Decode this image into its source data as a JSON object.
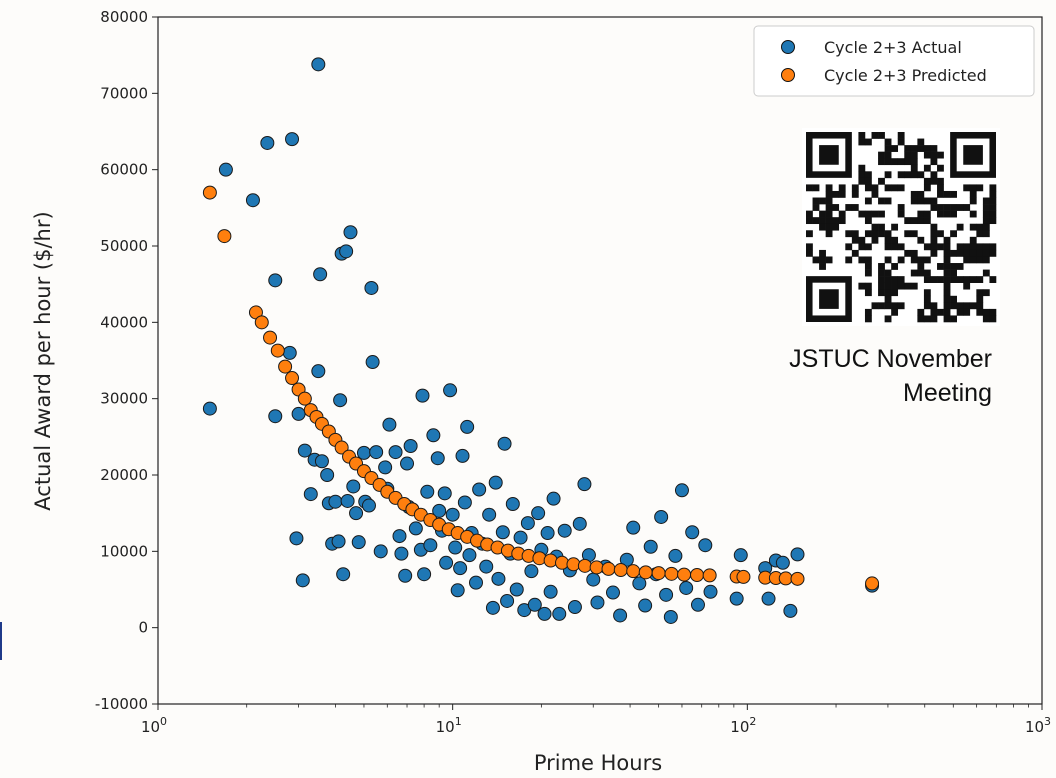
{
  "chart_data": {
    "type": "scatter",
    "xscale": "log",
    "xlim": [
      1,
      1000
    ],
    "ylim": [
      -10000,
      80000
    ],
    "xlabel": "Prime Hours",
    "ylabel": "Actual Award per hour ($/hr)",
    "x_ticks": [
      {
        "value": 1,
        "base": "10",
        "exp": "0"
      },
      {
        "value": 10,
        "base": "10",
        "exp": "1"
      },
      {
        "value": 100,
        "base": "10",
        "exp": "2"
      },
      {
        "value": 1000,
        "base": "10",
        "exp": "3"
      }
    ],
    "y_ticks": [
      "-10000",
      "0",
      "10000",
      "20000",
      "30000",
      "40000",
      "50000",
      "60000",
      "70000",
      "80000"
    ],
    "legend_position": "top-right",
    "series": [
      {
        "name": "Cycle 2+3 Actual",
        "color": "#1f77b4",
        "points": [
          [
            1.5,
            28700
          ],
          [
            1.7,
            60000
          ],
          [
            2.1,
            56000
          ],
          [
            2.35,
            63500
          ],
          [
            2.5,
            45500
          ],
          [
            2.5,
            27700
          ],
          [
            2.8,
            36000
          ],
          [
            2.85,
            64000
          ],
          [
            2.95,
            11700
          ],
          [
            3.0,
            28000
          ],
          [
            3.1,
            6200
          ],
          [
            3.15,
            23200
          ],
          [
            3.3,
            17500
          ],
          [
            3.4,
            22000
          ],
          [
            3.5,
            73800
          ],
          [
            3.5,
            33600
          ],
          [
            3.55,
            46300
          ],
          [
            3.6,
            21800
          ],
          [
            3.75,
            20000
          ],
          [
            3.8,
            16300
          ],
          [
            3.9,
            11000
          ],
          [
            4.0,
            16500
          ],
          [
            4.1,
            11300
          ],
          [
            4.15,
            29800
          ],
          [
            4.2,
            49000
          ],
          [
            4.25,
            7000
          ],
          [
            4.35,
            49300
          ],
          [
            4.4,
            16600
          ],
          [
            4.5,
            51800
          ],
          [
            4.6,
            18500
          ],
          [
            4.7,
            15000
          ],
          [
            4.8,
            11200
          ],
          [
            5.0,
            22900
          ],
          [
            5.05,
            16500
          ],
          [
            5.2,
            16000
          ],
          [
            5.3,
            44500
          ],
          [
            5.35,
            34800
          ],
          [
            5.5,
            23000
          ],
          [
            5.7,
            10000
          ],
          [
            5.9,
            21000
          ],
          [
            6.0,
            18200
          ],
          [
            6.1,
            26600
          ],
          [
            6.4,
            23000
          ],
          [
            6.6,
            12000
          ],
          [
            6.7,
            9700
          ],
          [
            6.9,
            6800
          ],
          [
            7.0,
            21500
          ],
          [
            7.1,
            15800
          ],
          [
            7.2,
            23800
          ],
          [
            7.5,
            13000
          ],
          [
            7.8,
            10200
          ],
          [
            7.9,
            30400
          ],
          [
            8.0,
            7000
          ],
          [
            8.2,
            17800
          ],
          [
            8.4,
            10800
          ],
          [
            8.6,
            25200
          ],
          [
            8.9,
            22200
          ],
          [
            9.0,
            15300
          ],
          [
            9.2,
            12700
          ],
          [
            9.4,
            17600
          ],
          [
            9.5,
            8500
          ],
          [
            9.8,
            31100
          ],
          [
            10.0,
            14800
          ],
          [
            10.2,
            10500
          ],
          [
            10.4,
            4900
          ],
          [
            10.6,
            7800
          ],
          [
            10.8,
            22500
          ],
          [
            11.0,
            16400
          ],
          [
            11.2,
            26300
          ],
          [
            11.4,
            9500
          ],
          [
            11.6,
            12400
          ],
          [
            12.0,
            5900
          ],
          [
            12.3,
            18100
          ],
          [
            12.6,
            11000
          ],
          [
            13.0,
            8000
          ],
          [
            13.3,
            14800
          ],
          [
            13.7,
            2600
          ],
          [
            14.0,
            19000
          ],
          [
            14.3,
            6400
          ],
          [
            14.8,
            12500
          ],
          [
            15.0,
            24100
          ],
          [
            15.3,
            3500
          ],
          [
            15.7,
            9700
          ],
          [
            16.0,
            16200
          ],
          [
            16.5,
            5000
          ],
          [
            17.0,
            11800
          ],
          [
            17.5,
            2300
          ],
          [
            18.0,
            13700
          ],
          [
            18.5,
            7400
          ],
          [
            19.0,
            3000
          ],
          [
            19.5,
            15000
          ],
          [
            20.0,
            10200
          ],
          [
            20.5,
            1800
          ],
          [
            21.0,
            12400
          ],
          [
            21.5,
            4700
          ],
          [
            22.0,
            16900
          ],
          [
            22.5,
            9300
          ],
          [
            23.0,
            1800
          ],
          [
            24.0,
            12700
          ],
          [
            25.0,
            7500
          ],
          [
            26.0,
            2700
          ],
          [
            27.0,
            13600
          ],
          [
            28.0,
            18800
          ],
          [
            29.0,
            9500
          ],
          [
            30.0,
            6300
          ],
          [
            31.0,
            3300
          ],
          [
            33.0,
            8000
          ],
          [
            35.0,
            4600
          ],
          [
            37.0,
            1600
          ],
          [
            39.0,
            8900
          ],
          [
            41.0,
            13100
          ],
          [
            43.0,
            5800
          ],
          [
            45.0,
            2900
          ],
          [
            47.0,
            10600
          ],
          [
            49.0,
            7000
          ],
          [
            51.0,
            14500
          ],
          [
            53.0,
            4300
          ],
          [
            55.0,
            1400
          ],
          [
            57.0,
            9400
          ],
          [
            60.0,
            18000
          ],
          [
            62.0,
            5200
          ],
          [
            65.0,
            12500
          ],
          [
            68.0,
            3000
          ],
          [
            72.0,
            10800
          ],
          [
            75.0,
            4700
          ],
          [
            92.0,
            3800
          ],
          [
            95.0,
            9500
          ],
          [
            115.0,
            7800
          ],
          [
            118.0,
            3800
          ],
          [
            125.0,
            8800
          ],
          [
            132.0,
            8500
          ],
          [
            140.0,
            2200
          ],
          [
            148.0,
            9600
          ],
          [
            265.0,
            5500
          ]
        ]
      },
      {
        "name": "Cycle 2+3 Predicted",
        "color": "#ff7f0e",
        "points": [
          [
            1.5,
            57000
          ],
          [
            1.68,
            51300
          ],
          [
            2.15,
            41300
          ],
          [
            2.25,
            40000
          ],
          [
            2.4,
            38000
          ],
          [
            2.55,
            36300
          ],
          [
            2.7,
            34200
          ],
          [
            2.85,
            32700
          ],
          [
            3.0,
            31200
          ],
          [
            3.15,
            30000
          ],
          [
            3.3,
            28500
          ],
          [
            3.45,
            27600
          ],
          [
            3.6,
            26700
          ],
          [
            3.8,
            25700
          ],
          [
            4.0,
            24600
          ],
          [
            4.2,
            23600
          ],
          [
            4.45,
            22400
          ],
          [
            4.7,
            21500
          ],
          [
            5.0,
            20500
          ],
          [
            5.3,
            19600
          ],
          [
            5.65,
            18700
          ],
          [
            6.0,
            17800
          ],
          [
            6.4,
            17000
          ],
          [
            6.85,
            16200
          ],
          [
            7.3,
            15500
          ],
          [
            7.8,
            14800
          ],
          [
            8.4,
            14100
          ],
          [
            9.0,
            13500
          ],
          [
            9.7,
            12900
          ],
          [
            10.4,
            12400
          ],
          [
            11.2,
            11900
          ],
          [
            12.1,
            11400
          ],
          [
            13.1,
            10900
          ],
          [
            14.2,
            10500
          ],
          [
            15.4,
            10100
          ],
          [
            16.7,
            9700
          ],
          [
            18.1,
            9400
          ],
          [
            19.7,
            9100
          ],
          [
            21.5,
            8800
          ],
          [
            23.5,
            8500
          ],
          [
            25.7,
            8300
          ],
          [
            28.1,
            8100
          ],
          [
            30.8,
            7900
          ],
          [
            33.8,
            7700
          ],
          [
            37.2,
            7550
          ],
          [
            41.0,
            7400
          ],
          [
            45.2,
            7250
          ],
          [
            50.0,
            7150
          ],
          [
            55.3,
            7050
          ],
          [
            61.0,
            6950
          ],
          [
            67.5,
            6900
          ],
          [
            74.5,
            6850
          ],
          [
            92.0,
            6700
          ],
          [
            97.0,
            6650
          ],
          [
            115.0,
            6550
          ],
          [
            125.0,
            6500
          ],
          [
            135.0,
            6450
          ],
          [
            148.0,
            6400
          ],
          [
            265.0,
            5800
          ]
        ]
      }
    ]
  },
  "annotation": {
    "line1": "JSTUC November",
    "line2": "Meeting"
  },
  "qr_code": {
    "name": "qr-code",
    "color": "#111111"
  }
}
